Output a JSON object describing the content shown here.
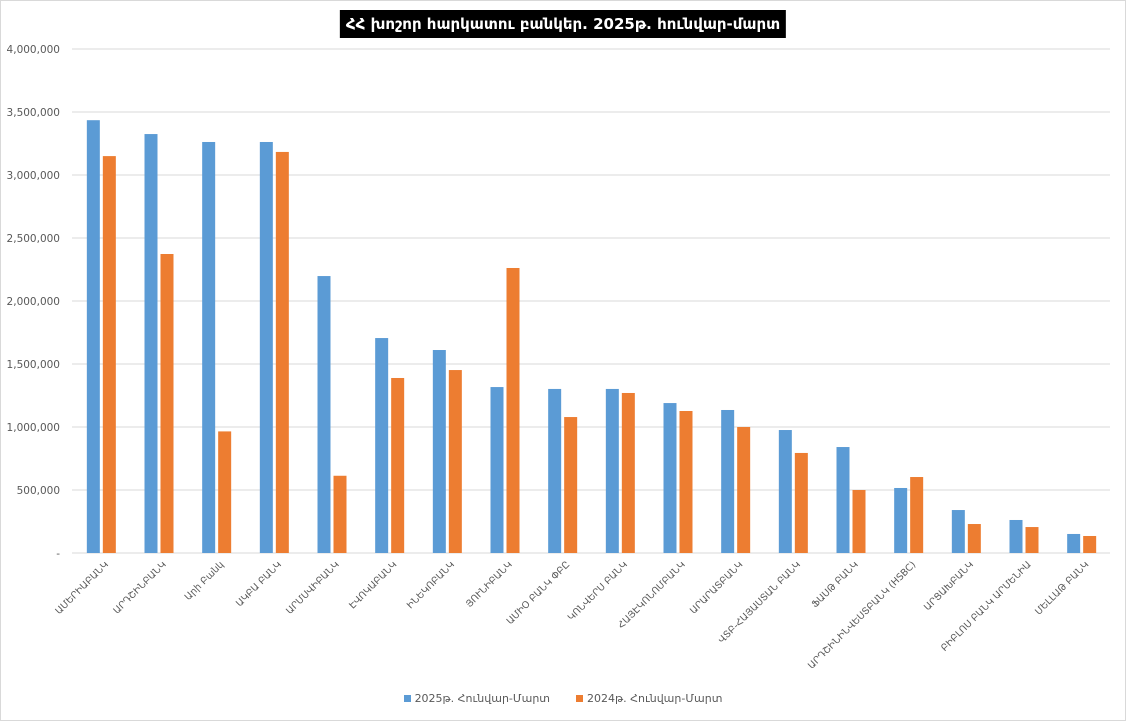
{
  "chart_data": {
    "type": "bar",
    "title": "ՀՀ խոշոր հարկատու բանկեր. 2025թ. հունվար-մարտ",
    "xlabel": "",
    "ylabel": "",
    "ylim": [
      0,
      4000000
    ],
    "yticks": [
      0,
      500000,
      1000000,
      1500000,
      2000000,
      2500000,
      3000000,
      3500000,
      4000000
    ],
    "ytick_labels": [
      "-",
      "500,000",
      "1,000,000",
      "1,500,000",
      "2,000,000",
      "2,500,000",
      "3,000,000",
      "3,500,000",
      "4,000,000"
    ],
    "grid": true,
    "legend_position": "bottom",
    "categories": [
      "ԱՄԵՐԻԱԲԱՆԿ",
      "ԱՐԴՇԻՆԲԱՆԿ",
      "Արի Բանկ",
      "ԱԿԲԱ ԲԱՆԿ",
      "ԱՐՄՍՎԻԲԱՆԿ",
      "ԷՎՈԿԱԲԱՆԿ",
      "ԻՆԵԿՈԲԱՆԿ",
      "ՅՈՒՆԻԲԱՆԿ",
      "ԱՄԻՕ ԲԱՆԿ ՓԲԸ",
      "ԿՈՆՎԵՐՍ ԲԱՆԿ",
      "ՀԱՅԷԿՈՆՈՄԲԱՆԿ",
      "ԱՐԱՐԱՏԲԱՆԿ",
      "ՎՏԲ-ՀԱՅԱՍՏԱՆ ԲԱՆԿ",
      "ՖԱՍԹ ԲԱՆԿ",
      "ԱՐԴՇԻՆԻՆՎԵՍՏԲԱՆԿ (HSBC)",
      "ԱՐՑԱԽԲԱՆԿ",
      "ԲԻԲԼՈՍ ԲԱՆԿ ԱՐՄԵՆԻԱ",
      "ՄԵԼԼԱԹ ԲԱՆԿ"
    ],
    "series": [
      {
        "name": "2025թ. Հունվար-Մարտ",
        "color": "#5B9BD5",
        "values": [
          3435000,
          3325000,
          3262000,
          3262000,
          2198000,
          1706000,
          1611000,
          1317000,
          1302000,
          1302000,
          1190000,
          1135000,
          976000,
          841000,
          516000,
          341000,
          262000,
          151000
        ]
      },
      {
        "name": "2024թ. Հունվար-Մարտ",
        "color": "#ED7D31",
        "values": [
          3150000,
          2373000,
          965000,
          3183000,
          613000,
          1389000,
          1452000,
          2262000,
          1079000,
          1270000,
          1127000,
          1000000,
          794000,
          500000,
          603000,
          230000,
          206000,
          135000
        ]
      }
    ]
  }
}
